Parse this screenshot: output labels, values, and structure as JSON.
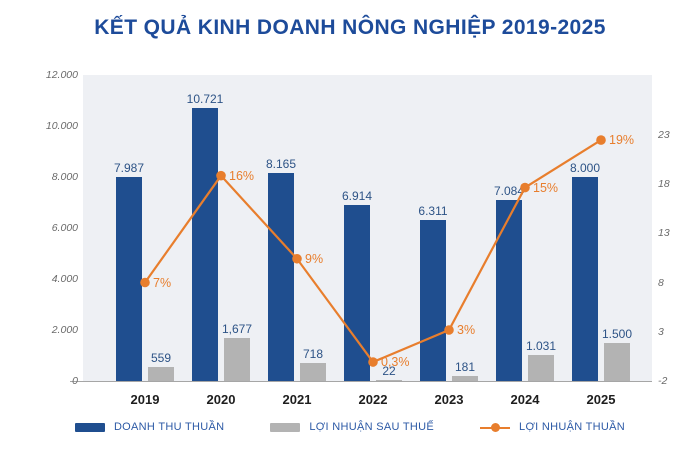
{
  "title": "KẾT QUẢ KINH DOANH NÔNG NGHIỆP 2019-2025",
  "colors": {
    "title": "#1d4b9a",
    "bar_revenue": "#1f4e8f",
    "bar_profit": "#b3b3b3",
    "line_margin": "#e87e2d",
    "plot_background": "#eef0f4",
    "axis_text": "#6b6b6b",
    "value_label": "#2d5386",
    "year_label": "#1e1e1e",
    "legend_text": "#2d5aa6",
    "baseline": "#a6a6a6"
  },
  "chart_data": {
    "type": "bar+line",
    "title": "KẾT QUẢ KINH DOANH NÔNG NGHIỆP 2019-2025",
    "categories": [
      "2019",
      "2020",
      "2021",
      "2022",
      "2023",
      "2024",
      "2025"
    ],
    "series": [
      {
        "name": "DOANH THU THUẦN",
        "type": "bar",
        "axis": "left",
        "values": [
          7987,
          10721,
          8165,
          6914,
          6311,
          7084,
          8000
        ],
        "labels": [
          "7.987",
          "10.721",
          "8.165",
          "6.914",
          "6.311",
          "7.084",
          "8.000"
        ]
      },
      {
        "name": "LỢI NHUẬN SAU THUẾ",
        "type": "bar",
        "axis": "left",
        "values": [
          559,
          1677,
          718,
          22,
          181,
          1031,
          1500
        ],
        "labels": [
          "559",
          "1,677",
          "718",
          "22",
          "181",
          "1.031",
          "1.500"
        ]
      },
      {
        "name": "LỢI NHUẬN THUẦN",
        "type": "line",
        "axis": "right",
        "values": [
          7,
          16,
          9,
          0.3,
          3,
          15,
          19
        ],
        "labels": [
          "7%",
          "16%",
          "9%",
          "0,3%",
          "3%",
          "15%",
          "19%"
        ]
      }
    ],
    "left_axis": {
      "min": 0,
      "max": 12000,
      "tick_labels": [
        "12.000",
        "10.000",
        "8.000",
        "6.000",
        "4.000",
        "2.000",
        "0"
      ]
    },
    "right_axis": {
      "min": -2,
      "max": 23,
      "tick_labels": [
        "23",
        "18",
        "13",
        "8",
        "3",
        "-2"
      ]
    },
    "legend_position": "bottom",
    "grid": false
  }
}
